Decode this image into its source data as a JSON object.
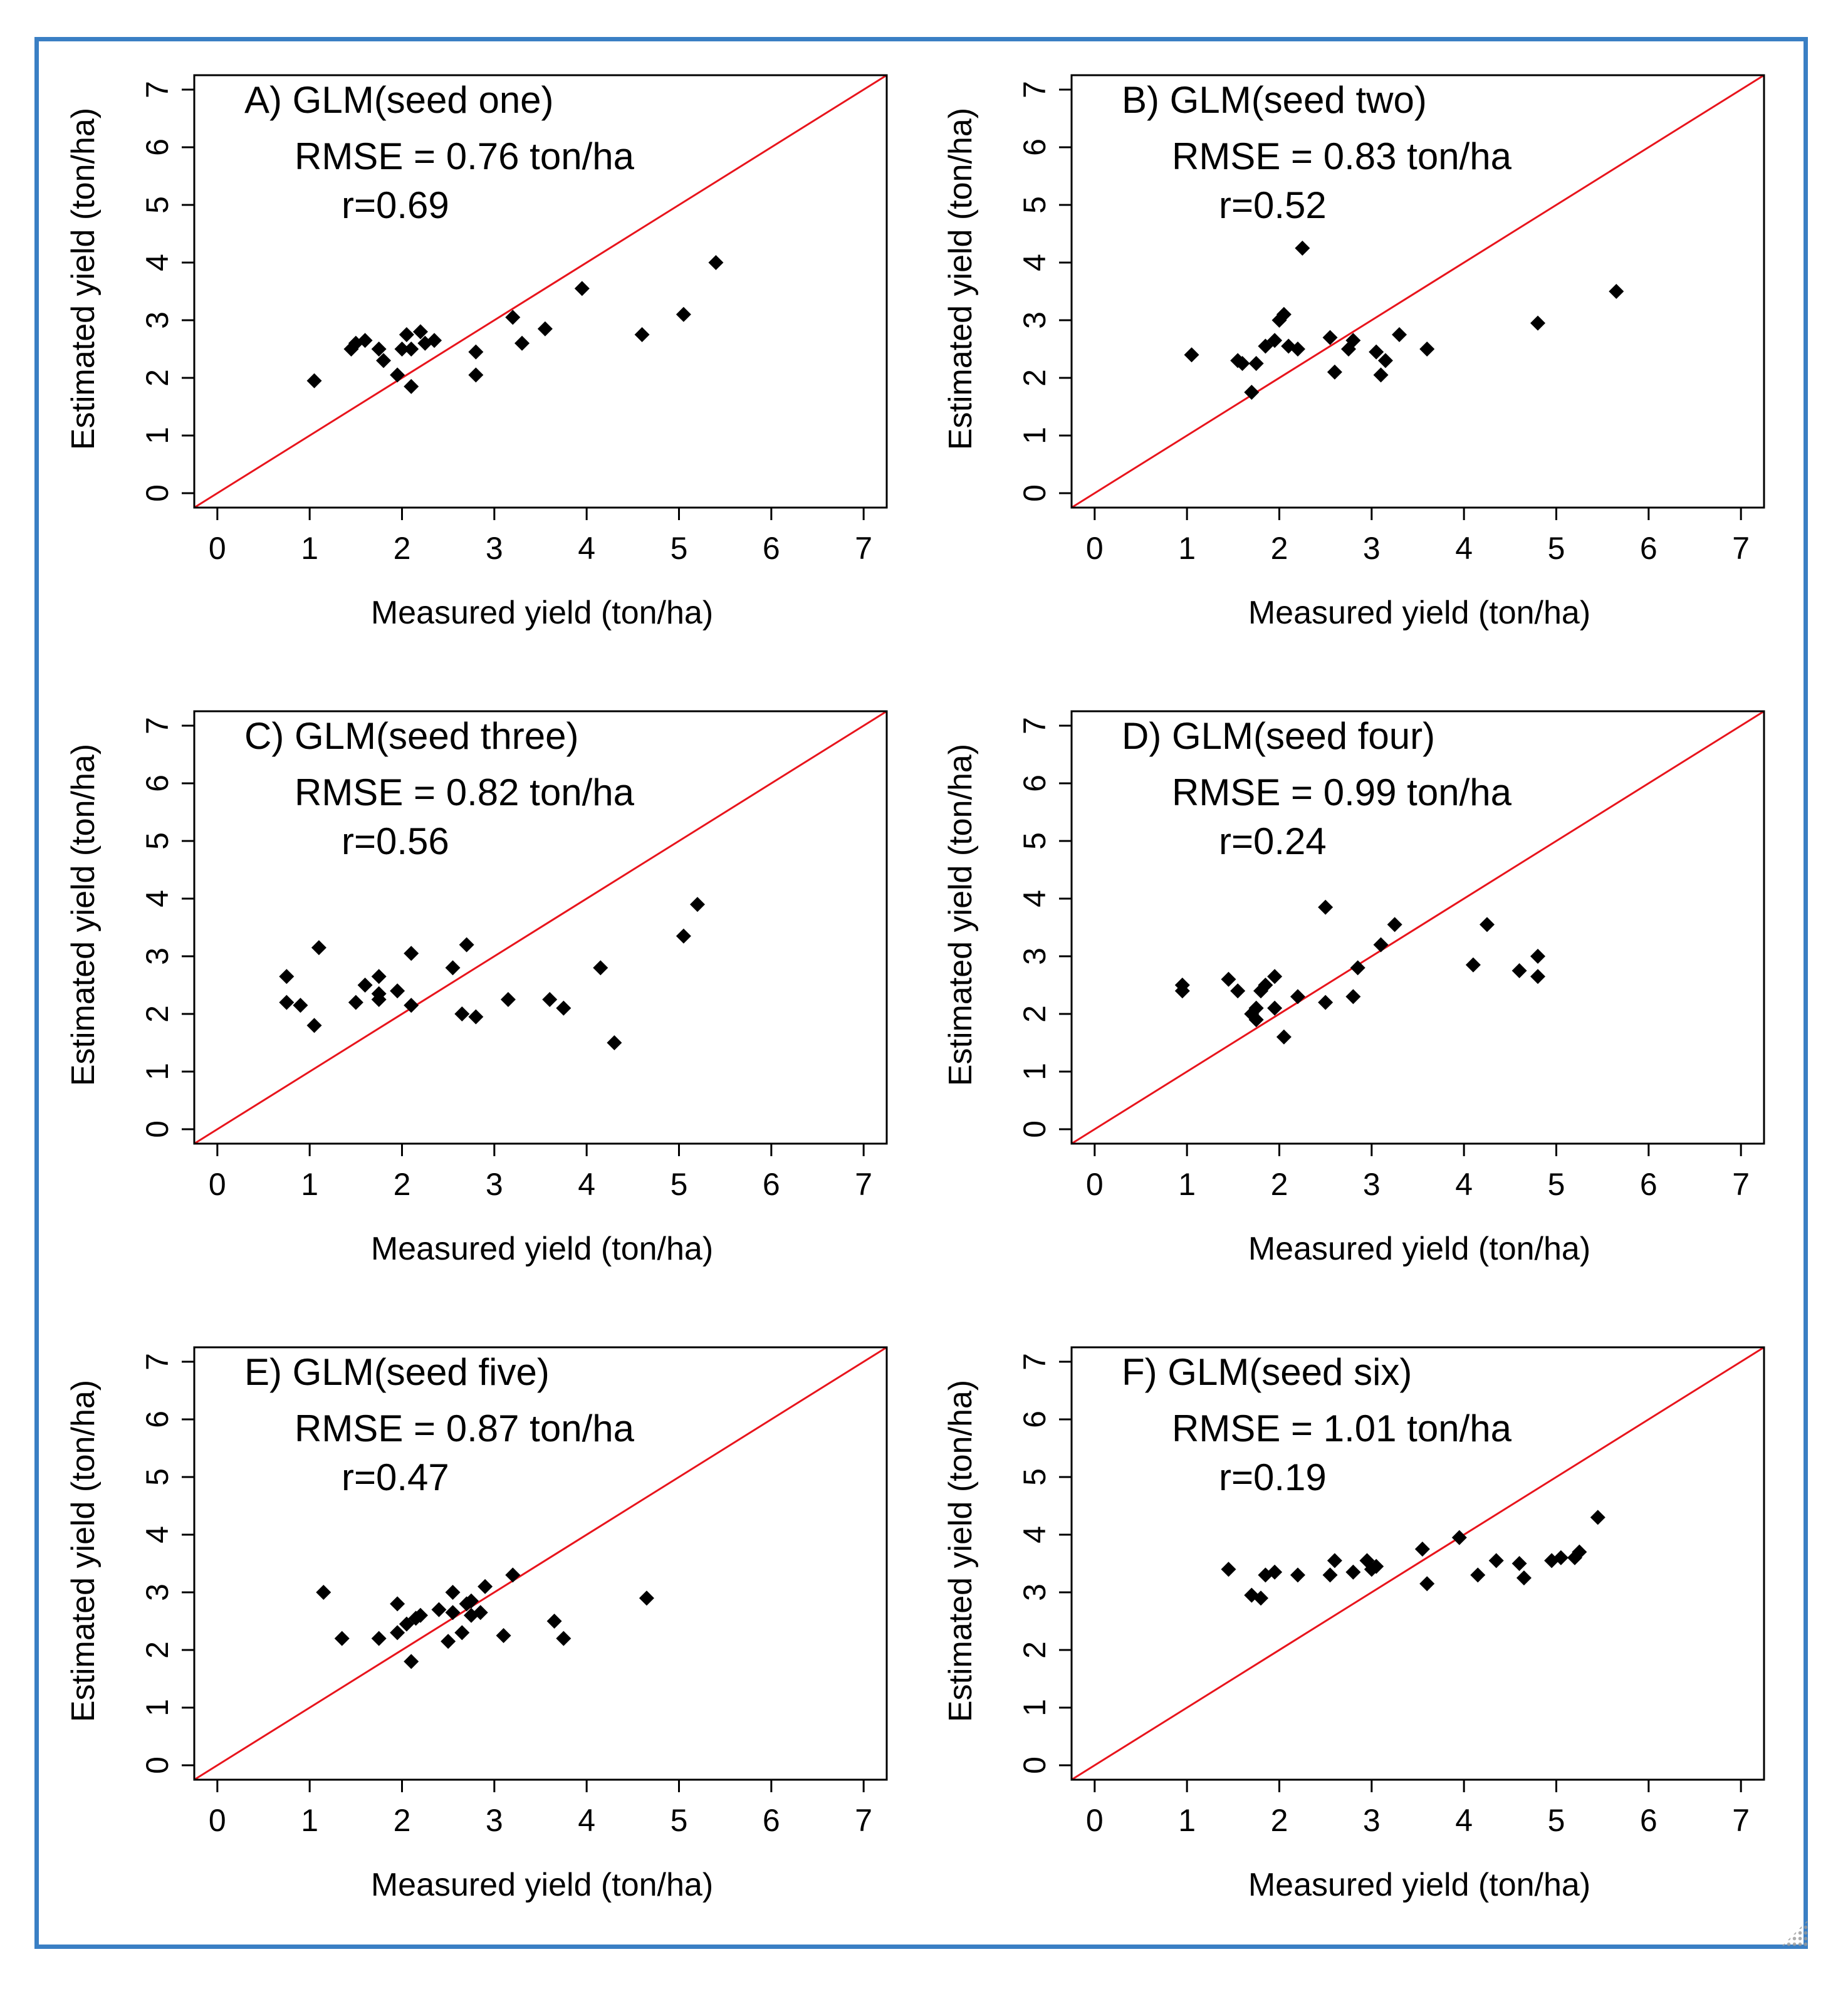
{
  "colors": {
    "frame": "#3a7fc4",
    "reference_line": "#e8141c",
    "points": "#000000",
    "axes": "#000000"
  },
  "chart_data": [
    {
      "type": "scatter",
      "panel": "A",
      "title": "A) GLM(seed one)",
      "rmse_text": "RMSE = 0.76 ton/ha",
      "r_text": "r=0.69",
      "xlabel": "Measured yield (ton/ha)",
      "ylabel": "Estimated yield (ton/ha)",
      "xlim": [
        -0.25,
        7.25
      ],
      "ylim": [
        -0.25,
        7.25
      ],
      "xticks": [
        0,
        1,
        2,
        3,
        4,
        5,
        6,
        7
      ],
      "yticks": [
        0,
        1,
        2,
        3,
        4,
        5,
        6,
        7
      ],
      "reference_line": "y = x",
      "points": [
        [
          1.05,
          1.95
        ],
        [
          1.45,
          2.5
        ],
        [
          1.5,
          2.6
        ],
        [
          1.6,
          2.65
        ],
        [
          1.75,
          2.5
        ],
        [
          1.8,
          2.3
        ],
        [
          1.95,
          2.05
        ],
        [
          2.0,
          2.5
        ],
        [
          2.05,
          2.75
        ],
        [
          2.1,
          1.85
        ],
        [
          2.1,
          2.5
        ],
        [
          2.2,
          2.8
        ],
        [
          2.25,
          2.6
        ],
        [
          2.35,
          2.65
        ],
        [
          2.8,
          2.45
        ],
        [
          2.8,
          2.05
        ],
        [
          3.2,
          3.05
        ],
        [
          3.3,
          2.6
        ],
        [
          3.55,
          2.85
        ],
        [
          3.95,
          3.55
        ],
        [
          4.6,
          2.75
        ],
        [
          5.05,
          3.1
        ],
        [
          5.4,
          4.0
        ]
      ]
    },
    {
      "type": "scatter",
      "panel": "B",
      "title": "B) GLM(seed two)",
      "rmse_text": "RMSE = 0.83 ton/ha",
      "r_text": "r=0.52",
      "xlabel": "Measured yield (ton/ha)",
      "ylabel": "Estimated yield (ton/ha)",
      "xlim": [
        -0.25,
        7.25
      ],
      "ylim": [
        -0.25,
        7.25
      ],
      "xticks": [
        0,
        1,
        2,
        3,
        4,
        5,
        6,
        7
      ],
      "yticks": [
        0,
        1,
        2,
        3,
        4,
        5,
        6,
        7
      ],
      "reference_line": "y = x",
      "points": [
        [
          1.05,
          2.4
        ],
        [
          1.55,
          2.3
        ],
        [
          1.6,
          2.25
        ],
        [
          1.7,
          1.75
        ],
        [
          1.75,
          2.25
        ],
        [
          1.85,
          2.55
        ],
        [
          1.95,
          2.65
        ],
        [
          2.0,
          3.0
        ],
        [
          2.05,
          3.1
        ],
        [
          2.1,
          2.55
        ],
        [
          2.2,
          2.5
        ],
        [
          2.25,
          4.25
        ],
        [
          2.55,
          2.7
        ],
        [
          2.6,
          2.1
        ],
        [
          2.75,
          2.5
        ],
        [
          2.8,
          2.65
        ],
        [
          3.05,
          2.45
        ],
        [
          3.1,
          2.05
        ],
        [
          3.15,
          2.3
        ],
        [
          3.3,
          2.75
        ],
        [
          3.6,
          2.5
        ],
        [
          4.8,
          2.95
        ],
        [
          5.65,
          3.5
        ]
      ]
    },
    {
      "type": "scatter",
      "panel": "C",
      "title": "C) GLM(seed three)",
      "rmse_text": "RMSE = 0.82 ton/ha",
      "r_text": "r=0.56",
      "xlabel": "Measured yield (ton/ha)",
      "ylabel": "Estimated yield (ton/ha)",
      "xlim": [
        -0.25,
        7.25
      ],
      "ylim": [
        -0.25,
        7.25
      ],
      "xticks": [
        0,
        1,
        2,
        3,
        4,
        5,
        6,
        7
      ],
      "yticks": [
        0,
        1,
        2,
        3,
        4,
        5,
        6,
        7
      ],
      "reference_line": "y = x",
      "points": [
        [
          0.75,
          2.65
        ],
        [
          0.75,
          2.2
        ],
        [
          0.9,
          2.15
        ],
        [
          1.05,
          1.8
        ],
        [
          1.1,
          3.15
        ],
        [
          1.5,
          2.2
        ],
        [
          1.6,
          2.5
        ],
        [
          1.75,
          2.65
        ],
        [
          1.75,
          2.35
        ],
        [
          1.75,
          2.25
        ],
        [
          1.95,
          2.4
        ],
        [
          2.1,
          2.15
        ],
        [
          2.1,
          3.05
        ],
        [
          2.55,
          2.8
        ],
        [
          2.65,
          2.0
        ],
        [
          2.7,
          3.2
        ],
        [
          2.8,
          1.95
        ],
        [
          3.15,
          2.25
        ],
        [
          3.6,
          2.25
        ],
        [
          3.75,
          2.1
        ],
        [
          4.15,
          2.8
        ],
        [
          4.3,
          1.5
        ],
        [
          5.05,
          3.35
        ],
        [
          5.2,
          3.9
        ]
      ]
    },
    {
      "type": "scatter",
      "panel": "D",
      "title": "D) GLM(seed four)",
      "rmse_text": "RMSE = 0.99 ton/ha",
      "r_text": "r=0.24",
      "xlabel": "Measured yield (ton/ha)",
      "ylabel": "Estimated yield (ton/ha)",
      "xlim": [
        -0.25,
        7.25
      ],
      "ylim": [
        -0.25,
        7.25
      ],
      "xticks": [
        0,
        1,
        2,
        3,
        4,
        5,
        6,
        7
      ],
      "yticks": [
        0,
        1,
        2,
        3,
        4,
        5,
        6,
        7
      ],
      "reference_line": "y = x",
      "points": [
        [
          0.95,
          2.5
        ],
        [
          0.95,
          2.4
        ],
        [
          1.45,
          2.6
        ],
        [
          1.55,
          2.4
        ],
        [
          1.7,
          2.0
        ],
        [
          1.75,
          1.9
        ],
        [
          1.75,
          2.1
        ],
        [
          1.8,
          2.4
        ],
        [
          1.85,
          2.5
        ],
        [
          1.95,
          2.1
        ],
        [
          1.95,
          2.65
        ],
        [
          2.05,
          1.6
        ],
        [
          2.2,
          2.3
        ],
        [
          2.5,
          2.2
        ],
        [
          2.5,
          3.85
        ],
        [
          2.8,
          2.3
        ],
        [
          2.85,
          2.8
        ],
        [
          3.1,
          3.2
        ],
        [
          3.25,
          3.55
        ],
        [
          4.1,
          2.85
        ],
        [
          4.25,
          3.55
        ],
        [
          4.6,
          2.75
        ],
        [
          4.8,
          3.0
        ],
        [
          4.8,
          2.65
        ]
      ]
    },
    {
      "type": "scatter",
      "panel": "E",
      "title": "E) GLM(seed five)",
      "rmse_text": "RMSE = 0.87 ton/ha",
      "r_text": "r=0.47",
      "xlabel": "Measured yield (ton/ha)",
      "ylabel": "Estimated yield (ton/ha)",
      "xlim": [
        -0.25,
        7.25
      ],
      "ylim": [
        -0.25,
        7.25
      ],
      "xticks": [
        0,
        1,
        2,
        3,
        4,
        5,
        6,
        7
      ],
      "yticks": [
        0,
        1,
        2,
        3,
        4,
        5,
        6,
        7
      ],
      "reference_line": "y = x",
      "points": [
        [
          1.15,
          3.0
        ],
        [
          1.35,
          2.2
        ],
        [
          1.75,
          2.2
        ],
        [
          1.95,
          2.8
        ],
        [
          1.95,
          2.3
        ],
        [
          2.05,
          2.45
        ],
        [
          2.1,
          1.8
        ],
        [
          2.15,
          2.55
        ],
        [
          2.2,
          2.6
        ],
        [
          2.4,
          2.7
        ],
        [
          2.5,
          2.15
        ],
        [
          2.55,
          2.65
        ],
        [
          2.55,
          3.0
        ],
        [
          2.65,
          2.3
        ],
        [
          2.7,
          2.8
        ],
        [
          2.75,
          2.6
        ],
        [
          2.75,
          2.85
        ],
        [
          2.85,
          2.65
        ],
        [
          2.9,
          3.1
        ],
        [
          3.1,
          2.25
        ],
        [
          3.2,
          3.3
        ],
        [
          3.65,
          2.5
        ],
        [
          3.75,
          2.2
        ],
        [
          4.65,
          2.9
        ]
      ]
    },
    {
      "type": "scatter",
      "panel": "F",
      "title": "F) GLM(seed six)",
      "rmse_text": "RMSE = 1.01 ton/ha",
      "r_text": "r=0.19",
      "xlabel": "Measured yield (ton/ha)",
      "ylabel": "Estimated yield (ton/ha)",
      "xlim": [
        -0.25,
        7.25
      ],
      "ylim": [
        -0.25,
        7.25
      ],
      "xticks": [
        0,
        1,
        2,
        3,
        4,
        5,
        6,
        7
      ],
      "yticks": [
        0,
        1,
        2,
        3,
        4,
        5,
        6,
        7
      ],
      "reference_line": "y = x",
      "points": [
        [
          1.45,
          3.4
        ],
        [
          1.7,
          2.95
        ],
        [
          1.8,
          2.9
        ],
        [
          1.85,
          3.3
        ],
        [
          1.95,
          3.35
        ],
        [
          2.2,
          3.3
        ],
        [
          2.55,
          3.3
        ],
        [
          2.6,
          3.55
        ],
        [
          2.8,
          3.35
        ],
        [
          2.95,
          3.55
        ],
        [
          3.0,
          3.4
        ],
        [
          3.05,
          3.45
        ],
        [
          3.55,
          3.75
        ],
        [
          3.6,
          3.15
        ],
        [
          3.95,
          3.95
        ],
        [
          4.15,
          3.3
        ],
        [
          4.35,
          3.55
        ],
        [
          4.6,
          3.5
        ],
        [
          4.65,
          3.25
        ],
        [
          4.95,
          3.55
        ],
        [
          5.05,
          3.6
        ],
        [
          5.2,
          3.6
        ],
        [
          5.25,
          3.7
        ],
        [
          5.45,
          4.3
        ]
      ]
    }
  ]
}
